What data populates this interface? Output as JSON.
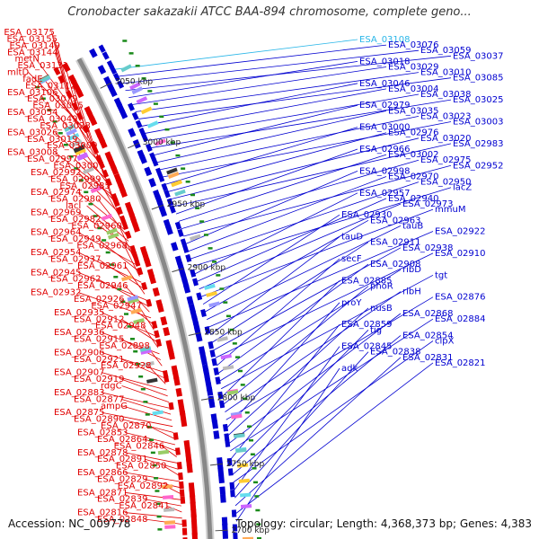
{
  "title": "Cronobacter sakazakii ATCC BAA-894 chromosome, complete geno...",
  "accession_text": "Accession: NC_009778",
  "summary_text": "Topology: circular; Length: 4,368,373 bp; Genes: 4,383",
  "colors": {
    "reverse_strand": "#e00000",
    "forward_strand": "#0000d0",
    "highlight": "#29b6e8",
    "backbone": "#888888",
    "tick": "#1a8a1a"
  },
  "scale_ticks": [
    "3050 kbp",
    "3000 kbp",
    "2950 kbp",
    "2900 kbp",
    "2850 kbp",
    "2800 kbp",
    "2750 kbp",
    "2700 kbp"
  ],
  "left_labels": [
    "ESA_03175",
    "ESA_03155",
    "ESA_03149",
    "ESA_03144",
    "metN",
    "ESA_03131",
    "mltD",
    "fadE",
    "ESA_03112",
    "ESA_03106",
    "ESA_03079",
    "ESA_03065",
    "ESA_03054",
    "ESA_03049",
    "ESA_03028",
    "ESA_03026",
    "ESA_03019",
    "ESA_03009",
    "ESA_03008",
    "ESA_02997",
    "ESA_03007",
    "ESA_02992",
    "ESA_02999",
    "ESA_02985",
    "ESA_02974",
    "ESA_02980",
    "lacI",
    "ESA_02969",
    "ESA_02982",
    "ESA_02960",
    "ESA_02964",
    "ESA_02949",
    "ESA_02968",
    "ESA_02954",
    "ESA_02937",
    "ESA_02961",
    "ESA_02945",
    "ESA_02962",
    "ESA_02946",
    "ESA_02932",
    "ESA_02926",
    "ESA_02947",
    "ESA_02935",
    "ESA_02912",
    "ESA_02948",
    "ESA_02936",
    "ESA_02915",
    "ESA_02898",
    "ESA_02906",
    "ESA_02921",
    "ESA_02928",
    "ESA_02907",
    "ESA_02919",
    "rdgC",
    "ESA_02883",
    "ESA_02877",
    "ampG",
    "ESA_02875",
    "ESA_02890",
    "ESA_02870",
    "ESA_02853",
    "ESA_02864",
    "ESA_02846",
    "ESA_02878",
    "ESA_02891",
    "ESA_02850",
    "ESA_02866",
    "ESA_02829",
    "ESA_02892",
    "ESA_02871",
    "ESA_02839",
    "ESA_02841",
    "ESA_02816",
    "ESA_02848"
  ],
  "right_labels": [
    "ESA_03108",
    "ESA_03076",
    "ESA_03059",
    "ESA_03037",
    "ESA_03018",
    "ESA_03029",
    "ESA_03010",
    "ESA_03085",
    "ESA_03046",
    "ESA_03004",
    "ESA_03038",
    "ESA_03025",
    "ESA_02979",
    "ESA_03035",
    "ESA_03023",
    "ESA_03003",
    "ESA_03000",
    "ESA_02976",
    "ESA_03020",
    "ESA_02983",
    "ESA_02966",
    "ESA_03002",
    "ESA_02975",
    "ESA_02952",
    "ESA_02998",
    "ESA_02970",
    "ESA_02950",
    "lacZ",
    "ESA_02957",
    "ESA_02940",
    "ESA_02973",
    "mmuM",
    "ESA_02930",
    "ESA_02963",
    "tauB",
    "ESA_02922",
    "tauD",
    "ESA_02911",
    "ESA_02938",
    "ESA_02910",
    "secF",
    "ESA_02908",
    "ribD",
    "tgt",
    "ESA_02885",
    "phoR",
    "ribH",
    "ESA_02876",
    "proY",
    "nusB",
    "ESA_02868",
    "ESA_02884",
    "ESA_02859",
    "tig",
    "ESA_02854",
    "clpX",
    "ESA_02845",
    "ESA_02838",
    "ESA_02831",
    "ESA_02821",
    "adk"
  ]
}
